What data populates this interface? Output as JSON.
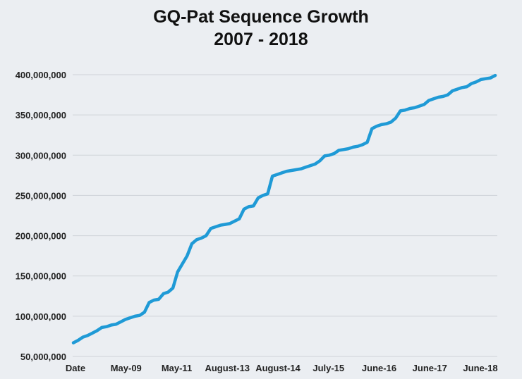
{
  "chart_data": {
    "type": "line",
    "title": "GQ-Pat Sequence Growth",
    "subtitle": "2007 - 2018",
    "xlabel": "",
    "ylabel": "",
    "ylim": [
      50000000,
      400000000
    ],
    "grid": true,
    "legend": "none",
    "line_color": "#1f9ad6",
    "y_ticks": [
      {
        "value": 50000000,
        "label": "50,000,000"
      },
      {
        "value": 100000000,
        "label": "100,000,000"
      },
      {
        "value": 150000000,
        "label": "150,000,000"
      },
      {
        "value": 200000000,
        "label": "200,000,000"
      },
      {
        "value": 250000000,
        "label": "250,000,000"
      },
      {
        "value": 300000000,
        "label": "300,000,000"
      },
      {
        "value": 350000000,
        "label": "350,000,000"
      },
      {
        "value": 400000000,
        "label": "400,000,000"
      }
    ],
    "x_tick_labels": [
      "Date",
      "May-09",
      "May-11",
      "August-13",
      "August-14",
      "July-15",
      "June-16",
      "June-17",
      "June-18"
    ],
    "series": [
      {
        "values": [
          67000000,
          70000000,
          74000000,
          76000000,
          79000000,
          82000000,
          86000000,
          87000000,
          89000000,
          90000000,
          93000000,
          96000000,
          98000000,
          100000000,
          101000000,
          105000000,
          117000000,
          120000000,
          121000000,
          128000000,
          130000000,
          135000000,
          155000000,
          165000000,
          175000000,
          190000000,
          195000000,
          197000000,
          200000000,
          209000000,
          211000000,
          213000000,
          214000000,
          215000000,
          218000000,
          221000000,
          233000000,
          236000000,
          237000000,
          247000000,
          250000000,
          252000000,
          274000000,
          276000000,
          278000000,
          280000000,
          281000000,
          282000000,
          283000000,
          285000000,
          287000000,
          289000000,
          293000000,
          299000000,
          300000000,
          302000000,
          306000000,
          307000000,
          308000000,
          310000000,
          311000000,
          313000000,
          316000000,
          333000000,
          336000000,
          338000000,
          339000000,
          341000000,
          346000000,
          355000000,
          356000000,
          358000000,
          359000000,
          361000000,
          363000000,
          368000000,
          370000000,
          372000000,
          373000000,
          375000000,
          380000000,
          382000000,
          384000000,
          385000000,
          389000000,
          391000000,
          394000000,
          395000000,
          396000000,
          399000000
        ]
      }
    ]
  }
}
